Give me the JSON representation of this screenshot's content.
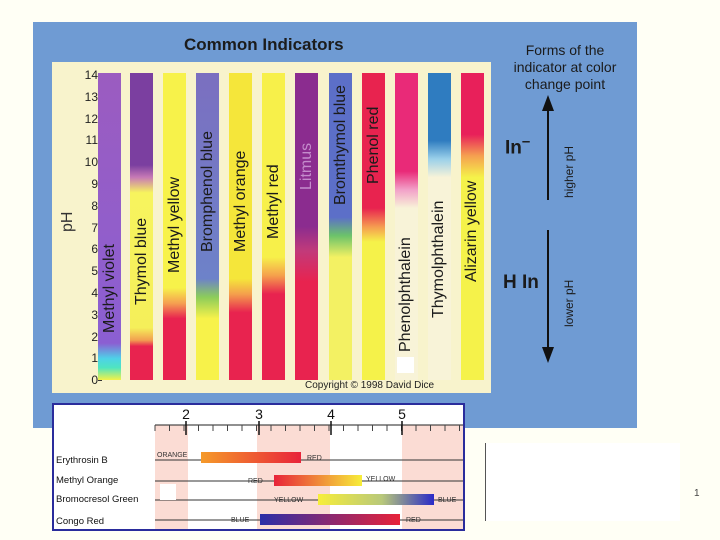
{
  "title": "Common Indicators",
  "axis_label": "pH",
  "ph_ticks": [
    "14",
    "13",
    "12",
    "11",
    "10",
    "9",
    "8",
    "7",
    "6",
    "5",
    "4",
    "3",
    "2",
    "1",
    "0"
  ],
  "indicators": [
    {
      "name": "Methyl violet",
      "color": "#8a5fb0"
    },
    {
      "name": "Thymol blue",
      "color": "#7b3fa0"
    },
    {
      "name": "Methyl yellow",
      "color": "#f7f24a"
    },
    {
      "name": "Bromphenol blue",
      "color": "#7b6fc0"
    },
    {
      "name": "Methyl orange",
      "color": "#f5e63a"
    },
    {
      "name": "Methyl red",
      "color": "#f7f04a"
    },
    {
      "name": "Litmus",
      "color": "#8b2c8f"
    },
    {
      "name": "Bromthymol blue",
      "color": "#5c6fc8"
    },
    {
      "name": "Phenol red",
      "color": "#e8234f"
    },
    {
      "name": "Phenolphthalein",
      "color": "#e92a78"
    },
    {
      "name": "Thymolphthalein",
      "color": "#2f7cc0"
    },
    {
      "name": "Alizarin yellow",
      "color": "#e8205a"
    }
  ],
  "copyright": "Copyright © 1998 David Dice",
  "forms_text": [
    "Forms of the",
    "indicator at color",
    "change point"
  ],
  "in_label": "In",
  "in_sup": "–",
  "hin_label": "H In",
  "higher_ph": "higher pH",
  "lower_ph": "lower pH",
  "bottom_scale": {
    "ticks": [
      "2",
      "3",
      "4",
      "5"
    ],
    "rows": [
      {
        "name": "Erythrosin B",
        "low": "ORANGE",
        "high": "RED"
      },
      {
        "name": "Methyl Orange",
        "low": "RED",
        "high": "YELLOW"
      },
      {
        "name": "Bromocresol Green",
        "low": "YELLOW",
        "high": "BLUE"
      },
      {
        "name": "Congo Red",
        "low": "BLUE",
        "high": "RED"
      }
    ]
  },
  "page_number": "1"
}
